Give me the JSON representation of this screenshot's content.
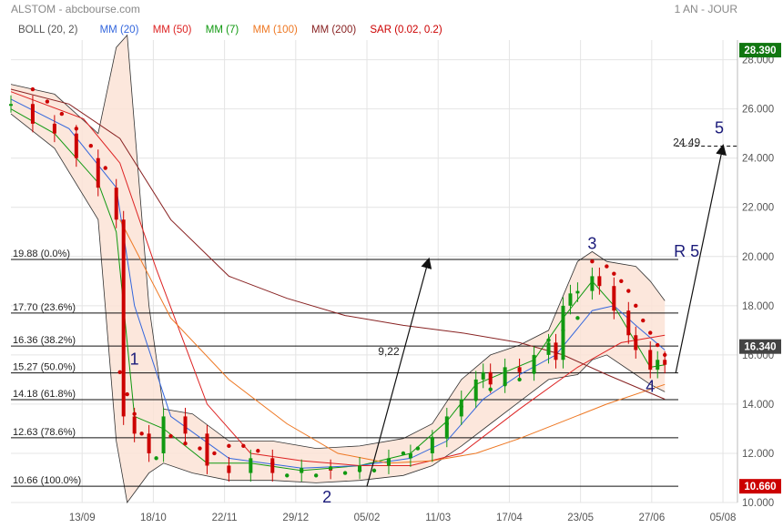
{
  "header": {
    "title": "ALSTOM - abcbourse.com",
    "period": "1 AN - JOUR"
  },
  "indicators": [
    {
      "label": "BOLL (20, 2)",
      "color": "#555555"
    },
    {
      "label": "MM (20)",
      "color": "#3366dd"
    },
    {
      "label": "MM (50)",
      "color": "#dd2222"
    },
    {
      "label": "MM (7)",
      "color": "#119911"
    },
    {
      "label": "MM (100)",
      "color": "#ee7722"
    },
    {
      "label": "MM (200)",
      "color": "#882222"
    },
    {
      "label": "SAR (0.02, 0.2)",
      "color": "#cc0000"
    }
  ],
  "colors": {
    "up": "#119911",
    "down": "#cc0000",
    "boll_fill": "#fbe3d6",
    "badge_green": "#117711",
    "badge_red": "#cc0000"
  },
  "chart_data": {
    "type": "line",
    "title": "ALSTOM - abcbourse.com",
    "subtitle": "1 AN - JOUR",
    "ylim": [
      10.0,
      28.8
    ],
    "y_ticks": [
      "10.000",
      "12.000",
      "14.000",
      "16.000",
      "18.000",
      "20.000",
      "22.000",
      "24.000",
      "26.000",
      "28.000"
    ],
    "x_ticks": [
      "13/09",
      "18/10",
      "22/11",
      "29/12",
      "05/02",
      "11/03",
      "17/04",
      "23/05",
      "27/06",
      "05/08"
    ],
    "grid": true,
    "price_badges": [
      {
        "label": "28.390",
        "value": 28.39,
        "color": "green"
      },
      {
        "label": "16.340",
        "value": 16.34,
        "color": "dark"
      },
      {
        "label": "10.660",
        "value": 10.66,
        "color": "red"
      }
    ],
    "fibonacci": [
      {
        "label": "19.88  (0.0%)",
        "value": 19.88
      },
      {
        "label": "17.70  (23.6%)",
        "value": 17.7
      },
      {
        "label": "16.36  (38.2%)",
        "value": 16.36
      },
      {
        "label": "15.27  (50.0%)",
        "value": 15.27
      },
      {
        "label": "14.18  (61.8%)",
        "value": 14.18
      },
      {
        "label": "12.63  (78.6%)",
        "value": 12.63
      },
      {
        "label": "10.66  (100.0%)",
        "value": 10.66
      }
    ],
    "annotations": [
      {
        "text": "1",
        "t": 0.17,
        "v": 15.6
      },
      {
        "text": "2",
        "t": 0.435,
        "v": 10.0
      },
      {
        "text": "3",
        "t": 0.8,
        "v": 20.3
      },
      {
        "text": "4",
        "t": 0.88,
        "v": 14.5
      },
      {
        "text": "R 5",
        "t": 0.93,
        "v": 20.0
      },
      {
        "text": "5",
        "t": 0.975,
        "v": 25.0
      },
      {
        "text": "9,22",
        "t": 0.52,
        "v": 16.0
      },
      {
        "text": "24.49",
        "t": 0.93,
        "v": 24.49
      }
    ],
    "projections": [
      {
        "from": [
          0.49,
          10.66
        ],
        "to": [
          0.575,
          19.88
        ]
      },
      {
        "from": [
          0.915,
          15.27
        ],
        "to": [
          0.98,
          24.49
        ]
      }
    ],
    "target_line": {
      "value": 24.49,
      "from": 0.915,
      "to": 1.0
    },
    "series": [
      {
        "name": "Prix",
        "style": "candles",
        "x": [
          0.0,
          0.03,
          0.06,
          0.09,
          0.12,
          0.145,
          0.155,
          0.17,
          0.19,
          0.21,
          0.24,
          0.27,
          0.3,
          0.33,
          0.36,
          0.4,
          0.44,
          0.48,
          0.52,
          0.55,
          0.58,
          0.6,
          0.62,
          0.64,
          0.65,
          0.66,
          0.68,
          0.7,
          0.72,
          0.74,
          0.75,
          0.76,
          0.77,
          0.78,
          0.8,
          0.81,
          0.83,
          0.85,
          0.86,
          0.88,
          0.89,
          0.9
        ],
        "values": [
          26.2,
          25.4,
          25.0,
          24.0,
          22.8,
          21.5,
          13.5,
          12.8,
          12.0,
          13.5,
          12.8,
          11.5,
          11.2,
          11.8,
          11.2,
          11.4,
          11.3,
          11.5,
          11.8,
          12.0,
          12.6,
          13.5,
          14.2,
          15.0,
          15.3,
          14.8,
          15.5,
          15.3,
          16.0,
          16.5,
          15.8,
          18.0,
          18.5,
          18.6,
          19.2,
          18.8,
          17.8,
          16.8,
          16.2,
          15.4,
          15.8,
          15.6
        ]
      },
      {
        "name": "MM (7)",
        "x": [
          0.0,
          0.06,
          0.12,
          0.145,
          0.17,
          0.21,
          0.27,
          0.33,
          0.4,
          0.48,
          0.55,
          0.6,
          0.64,
          0.68,
          0.72,
          0.76,
          0.8,
          0.83,
          0.86,
          0.88,
          0.9
        ],
        "values": [
          26.0,
          25.0,
          23.0,
          21.0,
          13.5,
          13.0,
          11.6,
          11.6,
          11.3,
          11.5,
          12.0,
          13.3,
          14.8,
          15.3,
          15.8,
          17.5,
          19.0,
          18.0,
          16.5,
          15.5,
          15.6
        ]
      },
      {
        "name": "MM (20)",
        "x": [
          0.0,
          0.08,
          0.145,
          0.17,
          0.22,
          0.3,
          0.4,
          0.48,
          0.55,
          0.6,
          0.65,
          0.7,
          0.75,
          0.8,
          0.83,
          0.86,
          0.9
        ],
        "values": [
          26.4,
          25.2,
          22.8,
          18.0,
          13.5,
          11.8,
          11.4,
          11.5,
          11.8,
          12.5,
          14.2,
          15.2,
          16.0,
          17.8,
          18.0,
          17.2,
          16.2
        ]
      },
      {
        "name": "MM (50)",
        "x": [
          0.0,
          0.1,
          0.15,
          0.2,
          0.27,
          0.33,
          0.4,
          0.48,
          0.55,
          0.62,
          0.7,
          0.78,
          0.84,
          0.9
        ],
        "values": [
          26.7,
          25.6,
          23.8,
          19.5,
          14.0,
          12.0,
          11.7,
          11.5,
          11.5,
          12.0,
          13.8,
          15.5,
          16.5,
          16.8
        ]
      },
      {
        "name": "MM (100)",
        "x": [
          0.15,
          0.22,
          0.3,
          0.38,
          0.45,
          0.52,
          0.58,
          0.64,
          0.7,
          0.76,
          0.82,
          0.88,
          0.9
        ],
        "values": [
          21.5,
          17.5,
          15.0,
          13.2,
          12.0,
          11.6,
          11.7,
          12.0,
          12.6,
          13.3,
          14.0,
          14.6,
          14.8
        ]
      },
      {
        "name": "MM (200)",
        "x": [
          0.0,
          0.08,
          0.15,
          0.22,
          0.3,
          0.38,
          0.46,
          0.54,
          0.62,
          0.7,
          0.76,
          0.82,
          0.86,
          0.9
        ],
        "values": [
          26.8,
          26.2,
          24.8,
          21.5,
          19.2,
          18.3,
          17.6,
          17.2,
          16.9,
          16.5,
          16.0,
          15.2,
          14.7,
          14.2
        ]
      },
      {
        "name": "BOLL haut",
        "x": [
          0.0,
          0.06,
          0.12,
          0.145,
          0.16,
          0.19,
          0.21,
          0.25,
          0.3,
          0.36,
          0.42,
          0.48,
          0.54,
          0.58,
          0.62,
          0.66,
          0.7,
          0.74,
          0.78,
          0.8,
          0.82,
          0.86,
          0.88,
          0.9
        ],
        "values": [
          27.0,
          26.6,
          25.0,
          28.5,
          29.0,
          18.0,
          13.8,
          13.6,
          12.5,
          12.5,
          12.2,
          12.3,
          12.6,
          13.2,
          15.0,
          16.0,
          16.4,
          17.0,
          19.8,
          20.2,
          19.8,
          19.6,
          19.0,
          18.2
        ]
      },
      {
        "name": "BOLL bas",
        "x": [
          0.0,
          0.06,
          0.12,
          0.145,
          0.16,
          0.19,
          0.21,
          0.25,
          0.3,
          0.36,
          0.42,
          0.48,
          0.54,
          0.58,
          0.62,
          0.66,
          0.7,
          0.74,
          0.78,
          0.8,
          0.82,
          0.86,
          0.88,
          0.9
        ],
        "values": [
          25.8,
          24.4,
          21.5,
          12.5,
          10.0,
          11.2,
          11.6,
          11.2,
          10.9,
          10.9,
          10.8,
          10.9,
          11.1,
          11.5,
          12.3,
          13.2,
          14.1,
          15.0,
          15.2,
          15.8,
          16.0,
          15.2,
          14.8,
          14.5
        ]
      },
      {
        "name": "SAR",
        "style": "dots",
        "x": [
          0.03,
          0.05,
          0.07,
          0.09,
          0.11,
          0.13,
          0.15,
          0.16,
          0.17,
          0.18,
          0.2,
          0.22,
          0.24,
          0.26,
          0.28,
          0.3,
          0.32,
          0.34,
          0.36,
          0.38,
          0.4,
          0.42,
          0.44,
          0.46,
          0.48,
          0.5,
          0.52,
          0.54,
          0.56,
          0.58,
          0.6,
          0.62,
          0.64,
          0.66,
          0.68,
          0.7,
          0.72,
          0.74,
          0.76,
          0.78,
          0.8,
          0.82,
          0.83,
          0.84,
          0.85,
          0.86,
          0.87,
          0.88,
          0.89,
          0.9
        ],
        "values": [
          26.8,
          26.3,
          25.8,
          25.2,
          24.5,
          23.6,
          15.3,
          14.4,
          13.6,
          12.8,
          11.8,
          12.7,
          12.4,
          12.2,
          12.0,
          12.3,
          12.3,
          12.1,
          11.6,
          11.1,
          11.3,
          11.1,
          11.4,
          11.2,
          11.3,
          11.3,
          11.7,
          12.0,
          12.2,
          12.6,
          13.2,
          13.9,
          14.2,
          14.6,
          14.8,
          15.0,
          15.3,
          16.6,
          17.0,
          17.5,
          19.8,
          19.6,
          19.3,
          19.0,
          18.6,
          18.0,
          17.4,
          16.9,
          16.4,
          16.0
        ],
        "colors": [
          "r",
          "r",
          "r",
          "r",
          "r",
          "r",
          "r",
          "r",
          "r",
          "r",
          "g",
          "r",
          "r",
          "r",
          "r",
          "r",
          "r",
          "r",
          "r",
          "g",
          "g",
          "g",
          "g",
          "g",
          "g",
          "g",
          "g",
          "g",
          "g",
          "g",
          "g",
          "g",
          "g",
          "g",
          "g",
          "g",
          "g",
          "g",
          "g",
          "g",
          "r",
          "r",
          "r",
          "r",
          "r",
          "r",
          "r",
          "r",
          "r",
          "r"
        ]
      }
    ]
  }
}
